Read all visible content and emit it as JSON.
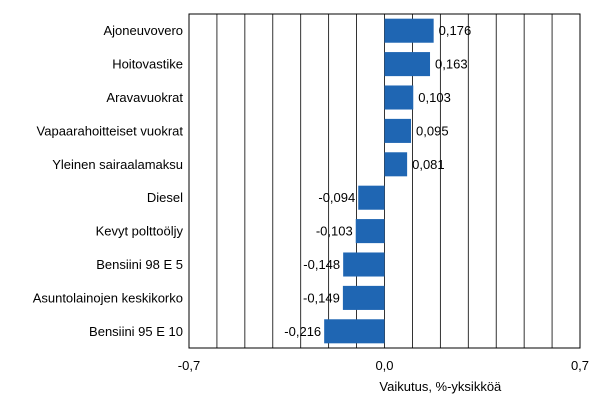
{
  "chart_data": {
    "type": "bar",
    "orientation": "horizontal",
    "categories": [
      "Ajoneuvovero",
      "Hoitovastike",
      "Aravavuokrat",
      "Vapaarahoitteiset vuokrat",
      "Yleinen sairaalamaksu",
      "Diesel",
      "Kevyt polttoöljy",
      "Bensiini 98 E 5",
      "Asuntolainojen keskikorko",
      "Bensiini 95 E 10"
    ],
    "values": [
      0.176,
      0.163,
      0.103,
      0.095,
      0.081,
      -0.094,
      -0.103,
      -0.148,
      -0.149,
      -0.216
    ],
    "value_labels": [
      "0,176",
      "0,163",
      "0,103",
      "0,095",
      "0,081",
      "-0,094",
      "-0,103",
      "-0,148",
      "-0,149",
      "-0,216"
    ],
    "xlim": [
      -0.7,
      0.7
    ],
    "x_ticks": [
      -0.7,
      0.0,
      0.7
    ],
    "x_tick_labels": [
      "-0,7",
      "0,0",
      "0,7"
    ],
    "gridline_step": 0.1,
    "grid": true,
    "xlabel": "Vaikutus, %-yksikköä",
    "title": "",
    "legend": "none",
    "bar_color": "#1f66b3"
  }
}
